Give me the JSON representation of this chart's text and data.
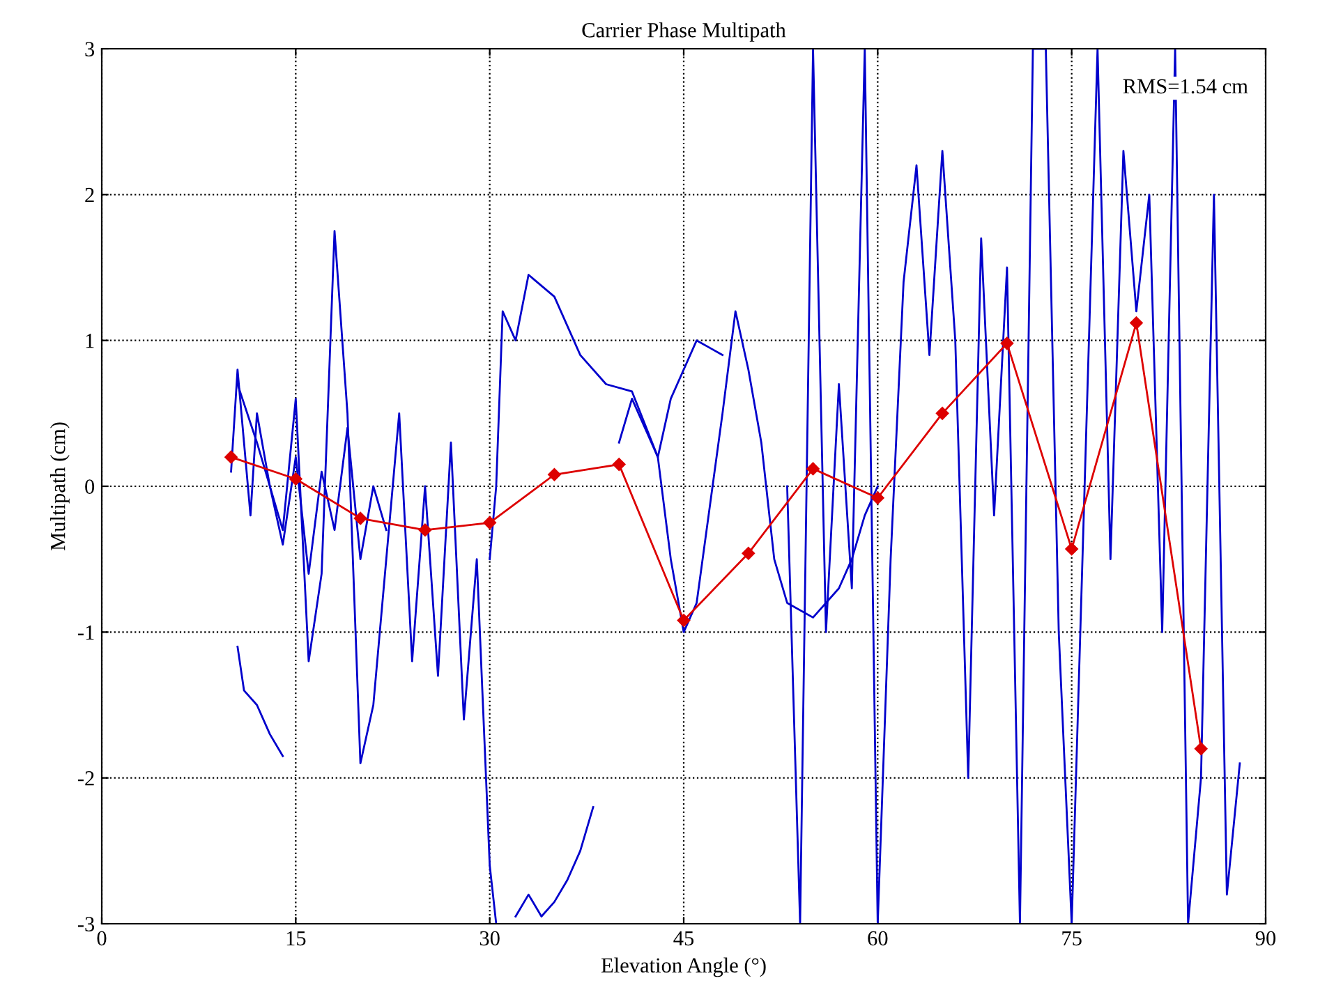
{
  "chart_data": {
    "type": "line",
    "title": "Carrier Phase Multipath",
    "xlabel": "Elevation Angle (°)",
    "ylabel": "Multipath (cm)",
    "annotations": [
      "RMS=1.54 cm"
    ],
    "xlim": [
      0,
      90
    ],
    "xticks": [
      0,
      15,
      30,
      45,
      60,
      75,
      90
    ],
    "ylim": [
      -3,
      3
    ],
    "yticks": [
      -3,
      -2,
      -1,
      0,
      1,
      2,
      3
    ],
    "grid": true,
    "line_style": "solid",
    "series": [
      {
        "color": "#0000cc",
        "marker": "none",
        "x": [
          10,
          10.5,
          11,
          11.5,
          12,
          13,
          14,
          15,
          16,
          17,
          18,
          19,
          20,
          21,
          22
        ],
        "values": [
          0.1,
          0.8,
          0.3,
          -0.2,
          0.5,
          0.0,
          -0.4,
          0.2,
          -0.6,
          0.1,
          -0.3,
          0.4,
          -0.5,
          0.0,
          -0.3
        ]
      },
      {
        "color": "#0000cc",
        "marker": "none",
        "x": [
          10.5,
          12,
          14,
          15,
          16,
          17,
          18,
          19,
          20,
          21,
          22,
          23,
          24,
          25,
          26,
          27,
          28,
          29,
          30,
          30.5
        ],
        "values": [
          0.7,
          0.3,
          -0.3,
          0.6,
          -1.2,
          -0.6,
          1.75,
          0.5,
          -1.9,
          -1.5,
          -0.5,
          0.5,
          -1.2,
          0.0,
          -1.3,
          0.3,
          -1.6,
          -0.5,
          -2.6,
          -3
        ]
      },
      {
        "color": "#0000cc",
        "marker": "none",
        "x": [
          10.5,
          11,
          12,
          13,
          14
        ],
        "values": [
          -1.1,
          -1.4,
          -1.5,
          -1.7,
          -1.85
        ]
      },
      {
        "color": "#0000cc",
        "marker": "none",
        "x": [
          30,
          30.5,
          31,
          32,
          33,
          35,
          37,
          39,
          41,
          43,
          44,
          45,
          46,
          48,
          49,
          50,
          51,
          52,
          53,
          55,
          57,
          58,
          59,
          60
        ],
        "values": [
          -0.5,
          0.0,
          1.2,
          1.0,
          1.45,
          1.3,
          0.9,
          0.7,
          0.65,
          0.2,
          -0.5,
          -1.0,
          -0.8,
          0.5,
          1.2,
          0.8,
          0.3,
          -0.5,
          -0.8,
          -0.9,
          -0.7,
          -0.5,
          -0.2,
          0.0
        ]
      },
      {
        "color": "#0000cc",
        "marker": "none",
        "x": [
          40,
          41,
          42,
          43,
          44,
          45,
          46,
          47,
          48
        ],
        "values": [
          0.3,
          0.6,
          0.4,
          0.2,
          0.6,
          0.8,
          1.0,
          0.95,
          0.9
        ]
      },
      {
        "color": "#0000cc",
        "marker": "none",
        "x": [
          32,
          33,
          34,
          35,
          36,
          37,
          38
        ],
        "values": [
          -2.95,
          -2.8,
          -2.95,
          -2.85,
          -2.7,
          -2.5,
          -2.2
        ]
      },
      {
        "color": "#0000cc",
        "marker": "none",
        "x": [
          53,
          54,
          55,
          56,
          57,
          58,
          59,
          60,
          61,
          62,
          63,
          64,
          65,
          66,
          67,
          68,
          69,
          70,
          71,
          72,
          73,
          74,
          75,
          76,
          77,
          78,
          79,
          80,
          81,
          82,
          83,
          84,
          85,
          86,
          87,
          88
        ],
        "values": [
          0.0,
          -3,
          3,
          -1,
          0.7,
          -0.7,
          3,
          -3,
          -0.5,
          1.4,
          2.2,
          0.9,
          2.3,
          1.0,
          -2.0,
          1.7,
          -0.2,
          1.5,
          -3,
          3,
          3,
          -1,
          -3,
          0.0,
          3,
          -0.5,
          2.3,
          1.2,
          2.0,
          -1.0,
          3,
          -3,
          -2,
          2.0,
          -2.8,
          -1.9
        ]
      },
      {
        "color": "#dd0000",
        "marker": "diamond",
        "x": [
          10,
          15,
          20,
          25,
          30,
          35,
          40,
          45,
          50,
          55,
          60,
          65,
          70,
          75,
          80,
          85
        ],
        "values": [
          0.2,
          0.05,
          -0.22,
          -0.3,
          -0.25,
          0.08,
          0.15,
          -0.92,
          -0.46,
          0.12,
          -0.08,
          0.5,
          0.98,
          -0.43,
          1.12,
          -1.8
        ]
      }
    ]
  }
}
